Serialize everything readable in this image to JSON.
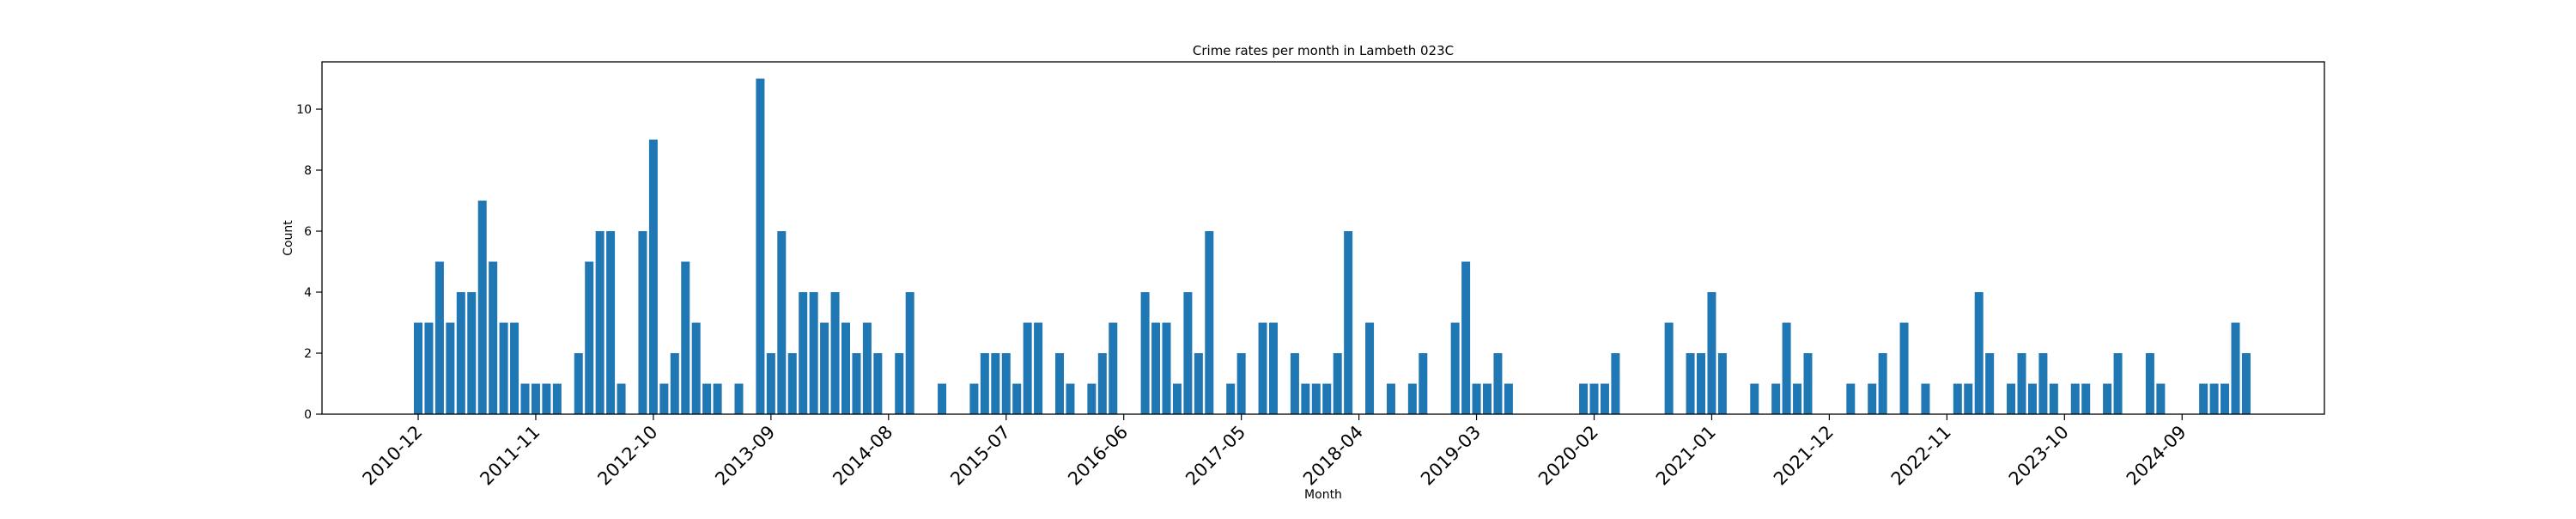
{
  "chart_data": {
    "type": "bar",
    "title": "Crime rates per month in Lambeth 023C",
    "xlabel": "Month",
    "ylabel": "Count",
    "ylim": [
      0,
      11.55
    ],
    "yticks": [
      0,
      2,
      4,
      6,
      8,
      10
    ],
    "xticks": [
      "2010-12",
      "2011-11",
      "2012-10",
      "2013-09",
      "2014-08",
      "2015-07",
      "2016-06",
      "2017-05",
      "2018-04",
      "2019-03",
      "2020-02",
      "2021-01",
      "2021-12",
      "2022-11",
      "2023-10",
      "2024-09"
    ],
    "grid": false,
    "color": "#1f77b4",
    "points": [
      {
        "x": "2010-12",
        "y": 3
      },
      {
        "x": "2011-01",
        "y": 3
      },
      {
        "x": "2011-02",
        "y": 5
      },
      {
        "x": "2011-03",
        "y": 3
      },
      {
        "x": "2011-04",
        "y": 4
      },
      {
        "x": "2011-05",
        "y": 4
      },
      {
        "x": "2011-06",
        "y": 7
      },
      {
        "x": "2011-07",
        "y": 5
      },
      {
        "x": "2011-08",
        "y": 3
      },
      {
        "x": "2011-09",
        "y": 3
      },
      {
        "x": "2011-10",
        "y": 1
      },
      {
        "x": "2011-11",
        "y": 1
      },
      {
        "x": "2011-12",
        "y": 1
      },
      {
        "x": "2012-01",
        "y": 1
      },
      {
        "x": "2012-03",
        "y": 2
      },
      {
        "x": "2012-04",
        "y": 5
      },
      {
        "x": "2012-05",
        "y": 6
      },
      {
        "x": "2012-06",
        "y": 6
      },
      {
        "x": "2012-07",
        "y": 1
      },
      {
        "x": "2012-09",
        "y": 6
      },
      {
        "x": "2012-10",
        "y": 9
      },
      {
        "x": "2012-11",
        "y": 1
      },
      {
        "x": "2012-12",
        "y": 2
      },
      {
        "x": "2013-01",
        "y": 5
      },
      {
        "x": "2013-02",
        "y": 3
      },
      {
        "x": "2013-03",
        "y": 1
      },
      {
        "x": "2013-04",
        "y": 1
      },
      {
        "x": "2013-06",
        "y": 1
      },
      {
        "x": "2013-08",
        "y": 11
      },
      {
        "x": "2013-09",
        "y": 2
      },
      {
        "x": "2013-10",
        "y": 6
      },
      {
        "x": "2013-11",
        "y": 2
      },
      {
        "x": "2013-12",
        "y": 4
      },
      {
        "x": "2014-01",
        "y": 4
      },
      {
        "x": "2014-02",
        "y": 3
      },
      {
        "x": "2014-03",
        "y": 4
      },
      {
        "x": "2014-04",
        "y": 3
      },
      {
        "x": "2014-05",
        "y": 2
      },
      {
        "x": "2014-06",
        "y": 3
      },
      {
        "x": "2014-07",
        "y": 2
      },
      {
        "x": "2014-09",
        "y": 2
      },
      {
        "x": "2014-10",
        "y": 4
      },
      {
        "x": "2015-01",
        "y": 1
      },
      {
        "x": "2015-04",
        "y": 1
      },
      {
        "x": "2015-05",
        "y": 2
      },
      {
        "x": "2015-06",
        "y": 2
      },
      {
        "x": "2015-07",
        "y": 2
      },
      {
        "x": "2015-08",
        "y": 1
      },
      {
        "x": "2015-09",
        "y": 3
      },
      {
        "x": "2015-10",
        "y": 3
      },
      {
        "x": "2015-12",
        "y": 2
      },
      {
        "x": "2016-01",
        "y": 1
      },
      {
        "x": "2016-03",
        "y": 1
      },
      {
        "x": "2016-04",
        "y": 2
      },
      {
        "x": "2016-05",
        "y": 3
      },
      {
        "x": "2016-08",
        "y": 4
      },
      {
        "x": "2016-09",
        "y": 3
      },
      {
        "x": "2016-10",
        "y": 3
      },
      {
        "x": "2016-11",
        "y": 1
      },
      {
        "x": "2016-12",
        "y": 4
      },
      {
        "x": "2017-01",
        "y": 2
      },
      {
        "x": "2017-02",
        "y": 6
      },
      {
        "x": "2017-04",
        "y": 1
      },
      {
        "x": "2017-05",
        "y": 2
      },
      {
        "x": "2017-07",
        "y": 3
      },
      {
        "x": "2017-08",
        "y": 3
      },
      {
        "x": "2017-10",
        "y": 2
      },
      {
        "x": "2017-11",
        "y": 1
      },
      {
        "x": "2017-12",
        "y": 1
      },
      {
        "x": "2018-01",
        "y": 1
      },
      {
        "x": "2018-02",
        "y": 2
      },
      {
        "x": "2018-03",
        "y": 6
      },
      {
        "x": "2018-05",
        "y": 3
      },
      {
        "x": "2018-07",
        "y": 1
      },
      {
        "x": "2018-09",
        "y": 1
      },
      {
        "x": "2018-10",
        "y": 2
      },
      {
        "x": "2019-01",
        "y": 3
      },
      {
        "x": "2019-02",
        "y": 5
      },
      {
        "x": "2019-03",
        "y": 1
      },
      {
        "x": "2019-04",
        "y": 1
      },
      {
        "x": "2019-05",
        "y": 2
      },
      {
        "x": "2019-06",
        "y": 1
      },
      {
        "x": "2020-01",
        "y": 1
      },
      {
        "x": "2020-02",
        "y": 1
      },
      {
        "x": "2020-03",
        "y": 1
      },
      {
        "x": "2020-04",
        "y": 2
      },
      {
        "x": "2020-09",
        "y": 3
      },
      {
        "x": "2020-11",
        "y": 2
      },
      {
        "x": "2020-12",
        "y": 2
      },
      {
        "x": "2021-01",
        "y": 4
      },
      {
        "x": "2021-02",
        "y": 2
      },
      {
        "x": "2021-05",
        "y": 1
      },
      {
        "x": "2021-07",
        "y": 1
      },
      {
        "x": "2021-08",
        "y": 3
      },
      {
        "x": "2021-09",
        "y": 1
      },
      {
        "x": "2021-10",
        "y": 2
      },
      {
        "x": "2022-02",
        "y": 1
      },
      {
        "x": "2022-04",
        "y": 1
      },
      {
        "x": "2022-05",
        "y": 2
      },
      {
        "x": "2022-07",
        "y": 3
      },
      {
        "x": "2022-09",
        "y": 1
      },
      {
        "x": "2022-12",
        "y": 1
      },
      {
        "x": "2023-01",
        "y": 1
      },
      {
        "x": "2023-02",
        "y": 4
      },
      {
        "x": "2023-03",
        "y": 2
      },
      {
        "x": "2023-05",
        "y": 1
      },
      {
        "x": "2023-06",
        "y": 2
      },
      {
        "x": "2023-07",
        "y": 1
      },
      {
        "x": "2023-08",
        "y": 2
      },
      {
        "x": "2023-09",
        "y": 1
      },
      {
        "x": "2023-11",
        "y": 1
      },
      {
        "x": "2023-12",
        "y": 1
      },
      {
        "x": "2024-02",
        "y": 1
      },
      {
        "x": "2024-03",
        "y": 2
      },
      {
        "x": "2024-06",
        "y": 2
      },
      {
        "x": "2024-07",
        "y": 1
      },
      {
        "x": "2024-11",
        "y": 1
      },
      {
        "x": "2024-12",
        "y": 1
      },
      {
        "x": "2025-01",
        "y": 1
      },
      {
        "x": "2025-02",
        "y": 3
      },
      {
        "x": "2025-03",
        "y": 2
      }
    ]
  }
}
